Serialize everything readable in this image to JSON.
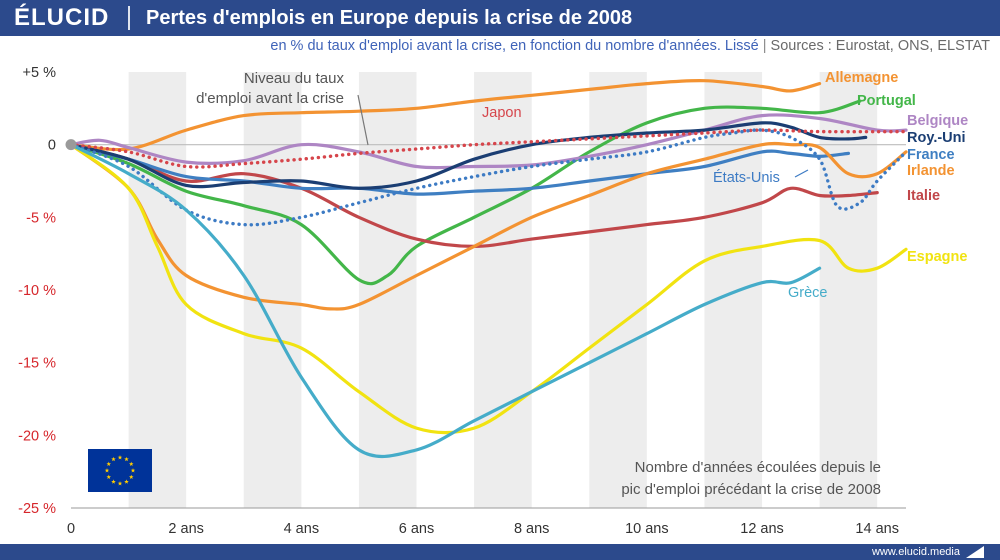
{
  "brand": {
    "logo": "ÉLUCID",
    "url": "www.elucid.media"
  },
  "header": {
    "title": "Pertes d'emplois en Europe depuis la crise de 2008"
  },
  "subheader": {
    "subtitle": "en % du taux d'emploi avant la crise, en fonction du nombre d'années. Lissé",
    "sources": "Sources : Eurostat, ONS, ELSTAT"
  },
  "colors": {
    "header_bg": "#2c4a8c",
    "axis_negative": "#d6262b",
    "Allemagne": "#f39332",
    "Portugal": "#43b649",
    "Belgique": "#ae86c4",
    "Roy.-Uni": "#1b3e73",
    "France": "#3f7fc2",
    "Irlande": "#f39332",
    "Italie": "#c1474a",
    "Espagne": "#f1e311",
    "Grèce": "#45acc9",
    "Japon": "#d6454b",
    "États-Unis": "#3d7bc4"
  },
  "annotations": {
    "baseline_label": [
      "Niveau du taux",
      "d'emploi avant la crise"
    ],
    "xaxis_note": [
      "Nombre d'années écoulées depuis le",
      "pic d'emploi précédant la crise de 2008"
    ]
  },
  "chart_data": {
    "type": "line",
    "x_ticks": [
      0,
      2,
      4,
      6,
      8,
      10,
      12,
      14
    ],
    "x_tick_labels": [
      "0",
      "2 ans",
      "4 ans",
      "6 ans",
      "8 ans",
      "10 ans",
      "12 ans",
      "14 ans"
    ],
    "y_ticks": [
      5,
      0,
      -5,
      -10,
      -15,
      -20,
      -25
    ],
    "y_tick_labels": [
      "+5 %",
      "0",
      "-5 %",
      "-10 %",
      "-15 %",
      "-20 %",
      "-25 %"
    ],
    "xlim": [
      0,
      14.5
    ],
    "ylim": [
      -25,
      5
    ],
    "background": "alternating vertical bands by year",
    "series": [
      {
        "name": "Allemagne",
        "style": "solid",
        "x": [
          0,
          1,
          2,
          3,
          4,
          5,
          6,
          7,
          8,
          9,
          10,
          11,
          12,
          12.5,
          13
        ],
        "y": [
          0,
          -0.3,
          1.0,
          2.0,
          2.2,
          2.3,
          2.5,
          3.0,
          3.4,
          3.8,
          4.2,
          4.4,
          4.0,
          3.7,
          4.2
        ]
      },
      {
        "name": "Portugal",
        "style": "solid",
        "x": [
          0,
          1,
          2,
          3,
          4,
          5,
          5.5,
          6,
          7,
          8,
          9,
          10,
          11,
          12,
          13,
          13.7
        ],
        "y": [
          0,
          -1.3,
          -3.2,
          -4.2,
          -5.5,
          -9.3,
          -9.0,
          -7.0,
          -5.0,
          -3.0,
          -0.5,
          1.5,
          2.5,
          2.5,
          2.2,
          3.0
        ]
      },
      {
        "name": "Belgique",
        "style": "solid",
        "x": [
          0,
          0.5,
          1,
          2,
          3,
          4,
          5,
          6,
          7,
          8,
          9,
          10,
          11,
          12,
          13,
          14,
          14.5
        ],
        "y": [
          0,
          0.3,
          -0.2,
          -1.2,
          -1.1,
          0.0,
          -0.5,
          -1.5,
          -1.5,
          -1.4,
          -0.8,
          0.0,
          1.0,
          2.0,
          1.8,
          1.0,
          1.0
        ]
      },
      {
        "name": "Roy.-Uni",
        "style": "solid",
        "x": [
          0,
          1,
          2,
          3,
          4,
          5,
          6,
          7,
          8,
          9,
          10,
          11,
          12,
          12.5,
          13,
          13.5,
          13.8
        ],
        "y": [
          0,
          -1.0,
          -2.8,
          -2.6,
          -2.5,
          -3.0,
          -2.5,
          -1.0,
          0.0,
          0.5,
          0.8,
          1.0,
          1.5,
          1.2,
          0.5,
          0.4,
          0.5
        ]
      },
      {
        "name": "France",
        "style": "solid",
        "x": [
          0,
          1,
          2,
          3,
          4,
          5,
          6,
          7,
          8,
          9,
          10,
          11,
          12,
          12.5,
          13,
          13.5
        ],
        "y": [
          0,
          -1.0,
          -2.2,
          -2.5,
          -3.0,
          -3.0,
          -3.4,
          -3.2,
          -3.0,
          -2.5,
          -2.0,
          -1.5,
          -0.5,
          -0.6,
          -0.8,
          -0.6
        ]
      },
      {
        "name": "Irlande",
        "style": "solid",
        "x": [
          0,
          1,
          1.5,
          2,
          3,
          4,
          4.5,
          5,
          6,
          7,
          8,
          9,
          10,
          11,
          12,
          12.5,
          13,
          13.5,
          14,
          14.5
        ],
        "y": [
          0,
          -3.0,
          -6.5,
          -9.0,
          -10.5,
          -11.0,
          -11.3,
          -11.0,
          -9.0,
          -7.0,
          -5.0,
          -3.5,
          -2.0,
          -1.0,
          0.0,
          0.0,
          -0.2,
          -2.0,
          -2.0,
          -0.5
        ]
      },
      {
        "name": "Italie",
        "style": "solid",
        "x": [
          0,
          1,
          2,
          3,
          4,
          5,
          6,
          7,
          8,
          9,
          10,
          11,
          12,
          12.5,
          13,
          13.5,
          14
        ],
        "y": [
          0,
          -1.0,
          -2.5,
          -2.0,
          -3.0,
          -5.0,
          -6.5,
          -7.0,
          -6.5,
          -6.0,
          -5.5,
          -5.0,
          -4.0,
          -3.0,
          -3.5,
          -3.5,
          -3.3
        ]
      },
      {
        "name": "Espagne",
        "style": "solid",
        "x": [
          0,
          1,
          1.5,
          2,
          3,
          4,
          5,
          6,
          7,
          8,
          9,
          10,
          11,
          12,
          13,
          13.5,
          14,
          14.5
        ],
        "y": [
          0,
          -3.0,
          -7.0,
          -11.0,
          -13.0,
          -14.0,
          -17.0,
          -19.5,
          -19.5,
          -17.0,
          -14.0,
          -11.0,
          -8.0,
          -7.0,
          -6.6,
          -8.5,
          -8.5,
          -7.2
        ]
      },
      {
        "name": "Grèce",
        "style": "solid",
        "x": [
          0,
          1,
          2,
          3,
          4,
          5,
          6,
          7,
          8,
          9,
          10,
          11,
          12,
          12.5,
          13
        ],
        "y": [
          0,
          -2.0,
          -4.5,
          -9.0,
          -16.0,
          -21.0,
          -21.0,
          -19.0,
          -17.0,
          -15.0,
          -13.0,
          -11.0,
          -9.5,
          -9.5,
          -8.5
        ]
      },
      {
        "name": "Japon",
        "style": "dotted",
        "x": [
          0,
          1,
          2,
          3,
          4,
          5,
          6,
          7,
          8,
          9,
          10,
          11,
          12,
          13,
          14.5
        ],
        "y": [
          0,
          -0.5,
          -1.5,
          -1.3,
          -1.0,
          -0.6,
          -0.3,
          0.0,
          0.2,
          0.4,
          0.6,
          0.8,
          1.0,
          0.9,
          0.9
        ]
      },
      {
        "name": "États-Unis",
        "style": "dotted",
        "x": [
          0,
          1,
          2,
          3,
          4,
          5,
          6,
          7,
          8,
          9,
          10,
          11,
          11.5,
          12,
          12.5,
          13,
          13.3,
          13.7,
          14,
          14.5
        ],
        "y": [
          0,
          -1.5,
          -4.5,
          -5.5,
          -5.0,
          -4.0,
          -3.0,
          -2.2,
          -1.5,
          -1.0,
          -0.5,
          0.5,
          0.8,
          1.0,
          0.5,
          -1.0,
          -4.2,
          -4.0,
          -2.5,
          -0.5
        ]
      }
    ]
  }
}
